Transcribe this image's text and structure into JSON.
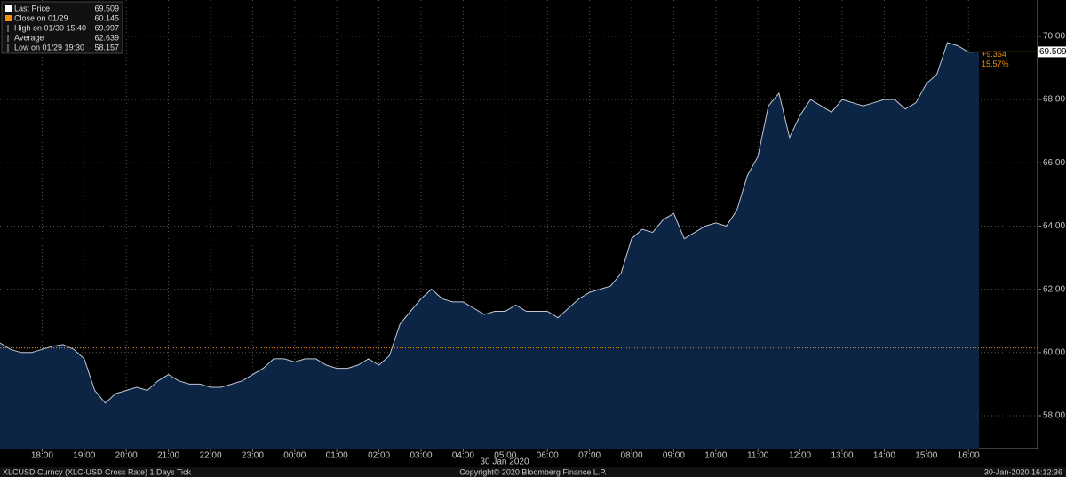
{
  "chart_data": {
    "type": "area",
    "legend": [
      {
        "label": "Last Price",
        "value": 69.509
      },
      {
        "label": "Close on 01/29",
        "value": 60.145
      },
      {
        "label": "High on 01/30 15:40",
        "value": 69.997
      },
      {
        "label": "Average",
        "value": 62.639
      },
      {
        "label": "Low on 01/29 19:30",
        "value": 58.157
      }
    ],
    "change_label": "+9.364",
    "change_pct_label": "15.57%",
    "date_label": "30 Jan 2020",
    "footer_left": "XLCUSD Curncy (XLC-USD Cross Rate) 1 Days  Tick",
    "footer_center": "Copyright© 2020 Bloomberg Finance L.P.",
    "footer_right": "30-Jan-2020 16:12:36",
    "categories": [
      null,
      null,
      null,
      null,
      "18:00",
      null,
      null,
      null,
      "19:00",
      null,
      null,
      null,
      "20:00",
      null,
      null,
      null,
      "21:00",
      null,
      null,
      null,
      "22:00",
      null,
      null,
      null,
      "23:00",
      null,
      null,
      null,
      "00:00",
      null,
      null,
      null,
      "01:00",
      null,
      null,
      null,
      "02:00",
      null,
      null,
      null,
      "03:00",
      null,
      null,
      null,
      "04:00",
      null,
      null,
      null,
      "05:00",
      null,
      null,
      null,
      "06:00",
      null,
      null,
      null,
      "07:00",
      null,
      null,
      null,
      "08:00",
      null,
      null,
      null,
      "09:00",
      null,
      null,
      null,
      "10:00",
      null,
      null,
      null,
      "11:00",
      null,
      null,
      null,
      "12:00",
      null,
      null,
      null,
      "13:00",
      null,
      null,
      null,
      "14:00",
      null,
      null,
      null,
      "15:00",
      null,
      null,
      null,
      "16:00",
      null,
      null,
      null,
      null,
      null,
      null
    ],
    "series": [
      {
        "name": "Last Price",
        "color": "#0d2545",
        "values": [
          60.3,
          60.1,
          60.0,
          60.0,
          60.1,
          60.2,
          60.25,
          60.1,
          59.8,
          58.8,
          58.4,
          58.7,
          58.8,
          58.9,
          58.8,
          59.1,
          59.3,
          59.1,
          59.0,
          59.0,
          58.9,
          58.9,
          59.0,
          59.1,
          59.3,
          59.5,
          59.8,
          59.8,
          59.7,
          59.8,
          59.8,
          59.6,
          59.5,
          59.5,
          59.6,
          59.8,
          59.6,
          59.9,
          60.9,
          61.3,
          61.7,
          62.0,
          61.7,
          61.6,
          61.6,
          61.4,
          61.2,
          61.3,
          61.3,
          61.5,
          61.3,
          61.3,
          61.3,
          61.1,
          61.4,
          61.7,
          61.9,
          62.0,
          62.1,
          62.5,
          63.6,
          63.9,
          63.8,
          64.2,
          64.4,
          63.6,
          63.8,
          64.0,
          64.1,
          64.0,
          64.5,
          65.6,
          66.2,
          67.8,
          68.2,
          66.8,
          67.5,
          68.0,
          67.8,
          67.6,
          68.0,
          67.9,
          67.8,
          67.9,
          68.0,
          68.0,
          67.7,
          67.9,
          68.5,
          68.8,
          69.8,
          69.7,
          69.5,
          69.509,
          null,
          null,
          null,
          null,
          null
        ]
      }
    ],
    "ylim": [
      56.96,
      71.15
    ],
    "yticks": [
      {
        "value": 58,
        "label": "58.00"
      },
      {
        "value": 60,
        "label": "60.00"
      },
      {
        "value": 62,
        "label": "62.00"
      },
      {
        "value": 64,
        "label": "64.00"
      },
      {
        "value": 66,
        "label": "66.00"
      },
      {
        "value": 68,
        "label": "68.00"
      },
      {
        "value": 70,
        "label": "70.00"
      }
    ],
    "grid": true,
    "close_color": "#f0900c",
    "legend_position": "upper left"
  }
}
